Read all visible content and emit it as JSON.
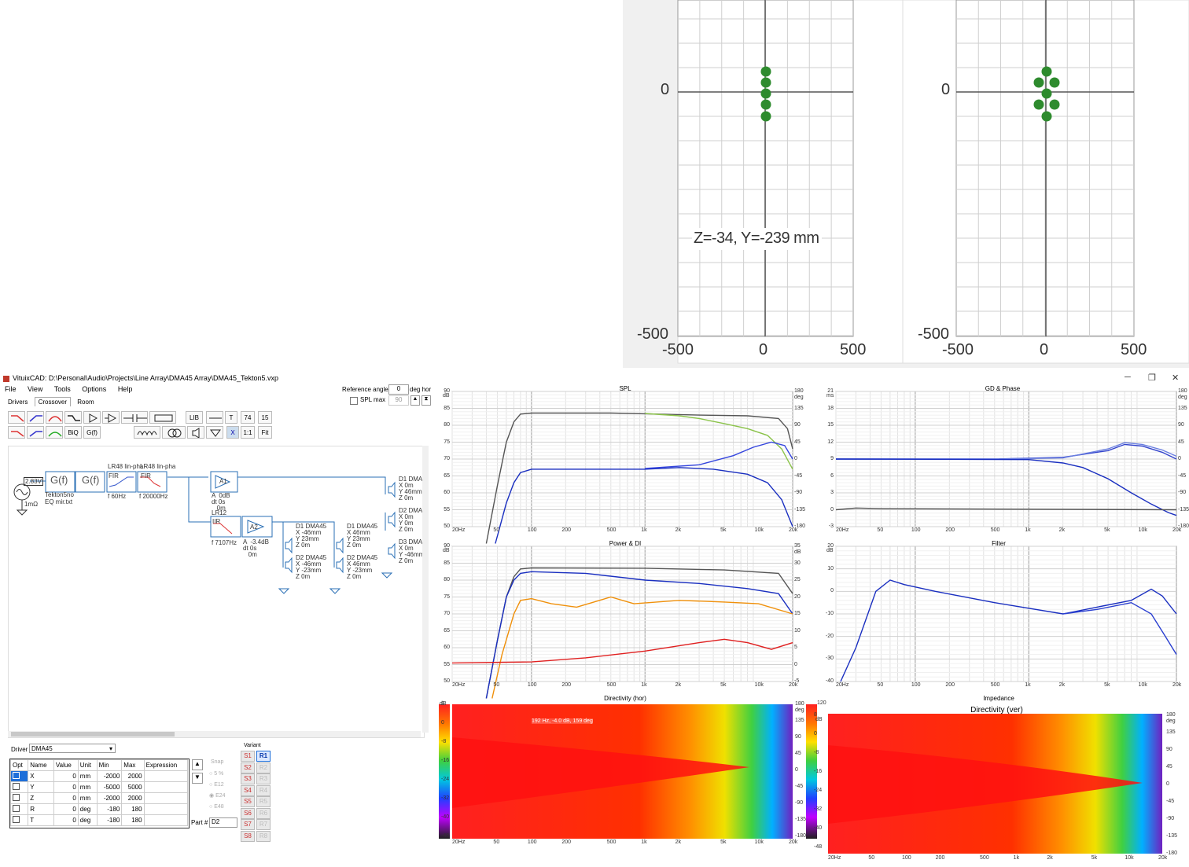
{
  "layout_view": {
    "left_plot": {
      "zero_label": "0",
      "bottom_label": "-500",
      "x_ticks": [
        "-500",
        "0",
        "500"
      ],
      "coordinate_readout": "Z=-34, Y=-239 mm"
    },
    "right_plot": {
      "zero_label": "0",
      "bottom_label": "-500",
      "x_ticks": [
        "-500",
        "0",
        "500"
      ]
    }
  },
  "window": {
    "title": "VituixCAD: D:\\Personal\\Audio\\Projects\\Line Array\\DMA45 Array\\DMA45_Tekton5.vxp",
    "min": "─",
    "restore": "❐",
    "close": "✕"
  },
  "menu": [
    "File",
    "View",
    "Tools",
    "Options",
    "Help"
  ],
  "tabs": [
    "Drivers",
    "Crossover",
    "Room"
  ],
  "reference": {
    "label": "Reference angle",
    "value": "0",
    "unit": "deg hor",
    "splmax_label": "SPL max",
    "splmax_value": "90"
  },
  "toolbar": {
    "lib": "LIB",
    "t": "T",
    "n74": "74",
    "n15": "15",
    "biq": "BiQ",
    "gf": "G(f)",
    "x": "X",
    "ratio": "1:1",
    "fit": "Fit"
  },
  "schematic": {
    "source_voltage": "2.83V",
    "source_res": "1mΩ",
    "gf1": "G(f)",
    "gf2": "G(f)",
    "eq_file": "Tekton5no\nEQ mir.txt",
    "fir1_title": "LR48 lin-pha",
    "fir1_type": "FIR",
    "fir1_freq": "f  60Hz",
    "fir2_title": "LR48 lin-pha",
    "fir2_type": "FIR",
    "fir2_freq": "f  20000Hz",
    "a1": "A1",
    "a1_params": "A  0dB\ndt 0s\n   0m",
    "iir_title": "LR12",
    "iir_type": "IIR",
    "iir_freq": "f  7107Hz",
    "a2": "A2",
    "a2_params": "A  -3.4dB\ndt 0s\n   0m",
    "drv1": "D1 DMA45\nX -46mm\nY 23mm\nZ 0m",
    "drv2": "D2 DMA45\nX -46mm\nY -23mm\nZ 0m",
    "drv3": "D1 DMA45\nX 46mm\nY 23mm\nZ 0m",
    "drv4": "D2 DMA45\nX 46mm\nY -23mm\nZ 0m",
    "drv5": "D1 DMA\nX 0m\nY 46mm\nZ 0m",
    "drv6": "D2 DMA\nX 0m\nY 0m\nZ 0m",
    "drv7": "D3 DMA\nX 0m\nY -46mm\nZ 0m"
  },
  "driver_panel": {
    "label": "Driver",
    "selected": "DMA45",
    "headers": [
      "Opt",
      "Name",
      "Value",
      "Unit",
      "Min",
      "Max",
      "Expression"
    ],
    "rows": [
      {
        "name": "X",
        "value": "0",
        "unit": "mm",
        "min": "-2000",
        "max": "2000"
      },
      {
        "name": "Y",
        "value": "0",
        "unit": "mm",
        "min": "-5000",
        "max": "5000"
      },
      {
        "name": "Z",
        "value": "0",
        "unit": "mm",
        "min": "-2000",
        "max": "2000"
      },
      {
        "name": "R",
        "value": "0",
        "unit": "deg",
        "min": "-180",
        "max": "180"
      },
      {
        "name": "T",
        "value": "0",
        "unit": "deg",
        "min": "-180",
        "max": "180"
      }
    ],
    "snap_label": "Snap",
    "snap_options": [
      "5 %",
      "E12",
      "E24",
      "E48"
    ],
    "part_label": "Part #",
    "part_value": "D2",
    "variant_label": "Variant",
    "variants_s": [
      "S1",
      "S2",
      "S3",
      "S4",
      "S5",
      "S6",
      "S7",
      "S8"
    ],
    "variants_r": [
      "R1",
      "R2",
      "R3",
      "R4",
      "R5",
      "R6",
      "R7",
      "R8"
    ]
  },
  "graphs": {
    "freq_ticks": [
      "20Hz",
      "50",
      "100",
      "200",
      "500",
      "1k",
      "2k",
      "5k",
      "10k",
      "20k"
    ],
    "spl": {
      "title": "SPL",
      "yunit": "dB",
      "y2unit": "deg",
      "yticks": [
        "90",
        "85",
        "80",
        "75",
        "70",
        "65",
        "60",
        "55",
        "50"
      ],
      "y2ticks": [
        "180",
        "135",
        "90",
        "45",
        "0",
        "-45",
        "-90",
        "-135",
        "-180"
      ]
    },
    "gd": {
      "title": "GD & Phase",
      "yunit": "ms",
      "y2unit": "deg",
      "yticks": [
        "21",
        "18",
        "15",
        "12",
        "9",
        "6",
        "3",
        "0",
        "-3"
      ],
      "y2ticks": [
        "180",
        "135",
        "90",
        "45",
        "0",
        "-45",
        "-90",
        "-135",
        "-180"
      ]
    },
    "power": {
      "title": "Power & DI",
      "yunit": "dB",
      "y2unit": "dB",
      "yticks": [
        "90",
        "85",
        "80",
        "75",
        "70",
        "65",
        "60",
        "55",
        "50"
      ],
      "y2ticks": [
        "35",
        "30",
        "25",
        "20",
        "15",
        "10",
        "5",
        "0",
        "-5"
      ]
    },
    "filter": {
      "title": "Filter",
      "yunit": "dB",
      "yticks": [
        "20",
        "10",
        "0",
        "-10",
        "-20",
        "-30",
        "-40"
      ]
    },
    "dir_hor": {
      "title": "Directivity (hor)",
      "cursor": "192 Hz, -4.0 dB, 159 deg",
      "scale": [
        "8",
        "0",
        "-8",
        "-16",
        "-24",
        "-32",
        "-40",
        "-48"
      ],
      "scale_unit": "dB",
      "y2ticks": [
        "180",
        "135",
        "90",
        "45",
        "0",
        "-45",
        "-90",
        "-135",
        "-180"
      ],
      "y2unit": "deg"
    },
    "impedance": {
      "title": "Impedance",
      "yticks": [
        "120"
      ]
    },
    "dir_ver": {
      "title": "Directivity (ver)",
      "scale": [
        "8",
        "0",
        "-8",
        "-16",
        "-24",
        "-32",
        "-40",
        "-48"
      ],
      "scale_unit": "dB",
      "y2ticks": [
        "180",
        "135",
        "90",
        "45",
        "0",
        "-45",
        "-90",
        "-135",
        "-180"
      ],
      "y2unit": "deg"
    }
  }
}
